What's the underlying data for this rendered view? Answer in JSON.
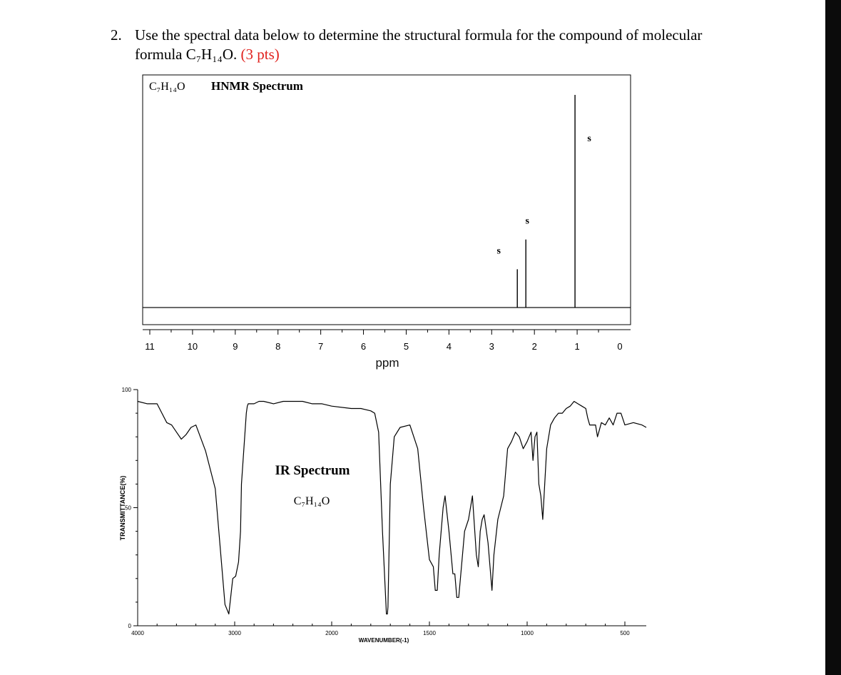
{
  "question": {
    "number": "2.",
    "text_line1": "Use the spectral data below to determine the structural formula for the compound of molecular",
    "text_line2": "formula C₇H₁₄O.",
    "points": "(3 pts)"
  },
  "chart_data": [
    {
      "type": "line",
      "title": "HNMR Spectrum",
      "formula": "C₇H₁₄O",
      "xlabel": "ppm",
      "ylabel": "",
      "xlim": [
        11,
        0
      ],
      "x_ticks": [
        "11",
        "10",
        "9",
        "8",
        "7",
        "6",
        "5",
        "4",
        "3",
        "2",
        "1",
        "0"
      ],
      "grid": false,
      "peaks": [
        {
          "ppm": 2.4,
          "relative_height": 0.18,
          "label": "s"
        },
        {
          "ppm": 2.2,
          "relative_height": 0.32,
          "label": "s"
        },
        {
          "ppm": 1.05,
          "relative_height": 1.0,
          "label": "s"
        }
      ]
    },
    {
      "type": "line",
      "title": "IR Spectrum",
      "formula": "C₇H₁₄O",
      "xlabel": "WAVENUMBER(-1)",
      "ylabel": "TRANSMITTANCE(%)",
      "xlim": [
        4000,
        450
      ],
      "ylim": [
        0,
        100
      ],
      "x_ticks": [
        "4000",
        "3000",
        "2000",
        "1500",
        "1000",
        "500"
      ],
      "y_ticks": [
        "0",
        "50",
        "100"
      ],
      "grid": false,
      "series": [
        {
          "x": [
            4000,
            3900,
            3800,
            3750,
            3700,
            3650,
            3600,
            3550,
            3500,
            3450,
            3400,
            3300,
            3200,
            3100,
            3060,
            3020,
            2990,
            2960,
            2940,
            2930,
            2880,
            2870,
            2860,
            2800,
            2750,
            2700,
            2600,
            2500,
            2400,
            2300,
            2200,
            2100,
            2000,
            1900,
            1850,
            1800,
            1780,
            1760,
            1740,
            1720,
            1715,
            1712,
            1700,
            1680,
            1650,
            1600,
            1560,
            1530,
            1500,
            1480,
            1470,
            1460,
            1450,
            1430,
            1420,
            1400,
            1380,
            1370,
            1360,
            1350,
            1320,
            1300,
            1280,
            1260,
            1250,
            1240,
            1230,
            1220,
            1200,
            1180,
            1170,
            1150,
            1120,
            1100,
            1080,
            1060,
            1040,
            1020,
            1000,
            990,
            980,
            970,
            960,
            950,
            940,
            930,
            920,
            900,
            880,
            860,
            840,
            820,
            800,
            780,
            760,
            740,
            720,
            700,
            690,
            680,
            660,
            650,
            640,
            620,
            600,
            580,
            560,
            540,
            520,
            500,
            480,
            460,
            450
          ],
          "y": [
            95,
            94,
            94,
            90,
            86,
            85,
            82,
            79,
            81,
            84,
            85,
            74,
            58,
            9,
            5,
            20,
            21,
            27,
            40,
            60,
            90,
            93,
            94,
            94,
            95,
            95,
            94,
            95,
            95,
            95,
            94,
            94,
            93,
            92,
            92,
            91,
            90,
            82,
            40,
            5,
            5,
            8,
            60,
            80,
            84,
            85,
            75,
            50,
            28,
            25,
            15,
            15,
            30,
            50,
            55,
            40,
            22,
            22,
            12,
            12,
            40,
            45,
            55,
            30,
            25,
            40,
            45,
            47,
            35,
            15,
            30,
            45,
            55,
            75,
            78,
            82,
            80,
            75,
            78,
            80,
            82,
            70,
            80,
            82,
            60,
            55,
            45,
            75,
            85,
            88,
            90,
            90,
            92,
            93,
            95,
            94,
            93,
            92,
            88,
            85,
            85,
            85,
            80,
            86,
            85,
            88,
            85,
            90,
            90,
            85,
            86,
            85,
            84
          ]
        }
      ]
    }
  ]
}
